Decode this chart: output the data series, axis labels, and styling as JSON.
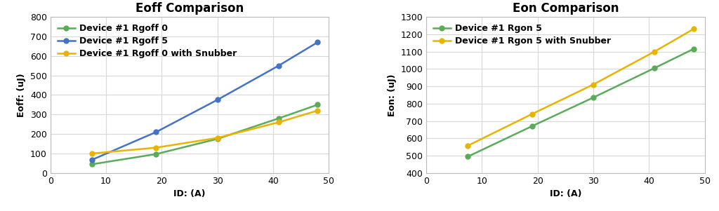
{
  "eoff_title": "Eoff Comparison",
  "eon_title": "Eon Comparison",
  "xlabel": "ID: (A)",
  "eoff_ylabel": "Eoff: (uJ)",
  "eon_ylabel": "Eon: (uJ)",
  "x": [
    7.5,
    19,
    30,
    41,
    48
  ],
  "eoff_series": [
    {
      "label": "Device #1 Rgoff 0",
      "color": "#5AAB5A",
      "values": [
        45,
        97,
        175,
        280,
        350
      ]
    },
    {
      "label": "Device #1 Rgoff 5",
      "color": "#4472C4",
      "values": [
        68,
        210,
        375,
        550,
        670
      ]
    },
    {
      "label": "Device #1 Rgoff 0 with Snubber",
      "color": "#E8B400",
      "values": [
        100,
        130,
        180,
        260,
        320
      ]
    }
  ],
  "eon_series": [
    {
      "label": "Device #1 Rgon 5",
      "color": "#5AAB5A",
      "values": [
        495,
        670,
        835,
        1005,
        1115
      ]
    },
    {
      "label": "Device #1 Rgon 5 with Snubber",
      "color": "#E8B400",
      "values": [
        558,
        740,
        910,
        1100,
        1230
      ]
    }
  ],
  "eoff_ylim": [
    0,
    800
  ],
  "eoff_yticks": [
    0,
    100,
    200,
    300,
    400,
    500,
    600,
    700,
    800
  ],
  "eon_ylim": [
    400,
    1300
  ],
  "eon_yticks": [
    400,
    500,
    600,
    700,
    800,
    900,
    1000,
    1100,
    1200,
    1300
  ],
  "xlim": [
    0,
    50
  ],
  "xticks": [
    0,
    10,
    20,
    30,
    40,
    50
  ],
  "background_color": "#FFFFFF",
  "plot_bg_color": "#FFFFFF",
  "grid_color": "#D8D8D8",
  "title_fontsize": 12,
  "label_fontsize": 9,
  "tick_fontsize": 9,
  "legend_fontsize": 9,
  "marker": "o",
  "marker_size": 5,
  "line_width": 1.8
}
